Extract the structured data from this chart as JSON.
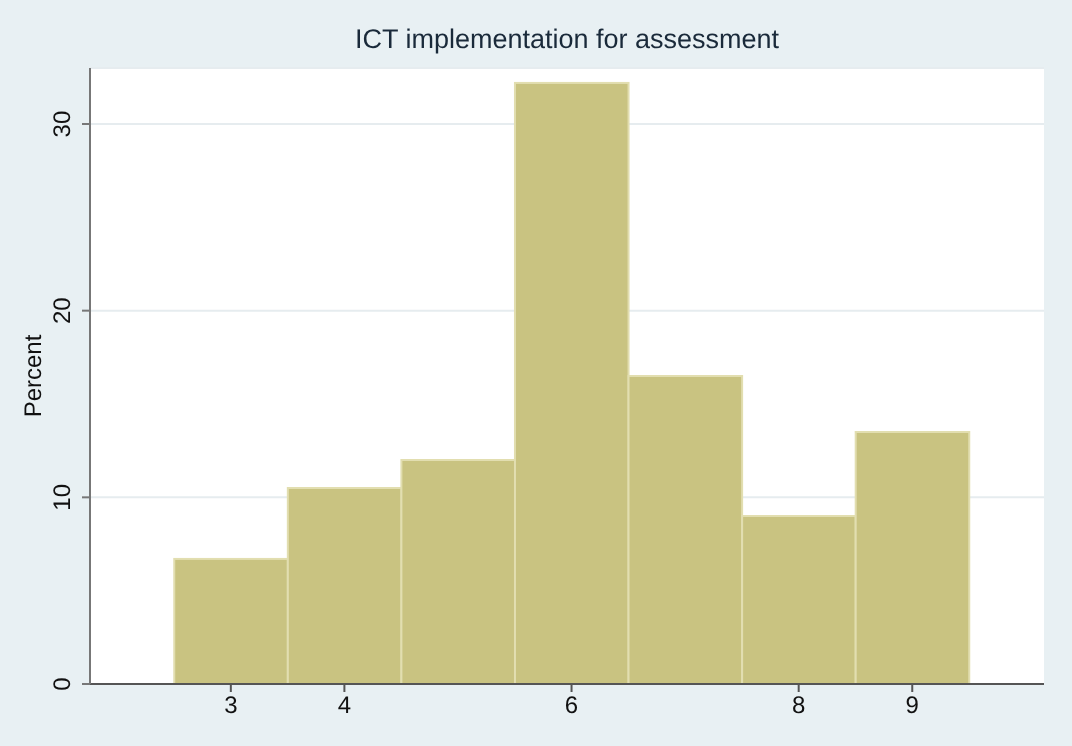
{
  "chart_data": {
    "type": "histogram",
    "title": "ICT implementation for assessment",
    "ylabel": "Percent",
    "bins": [
      2.5,
      3.5,
      4.5,
      5.5,
      6.5,
      7.5,
      8.5,
      9.5
    ],
    "values": [
      6.7,
      10.5,
      12,
      32.2,
      16.5,
      9,
      13.5
    ],
    "color": "#c9c381",
    "xlim": [
      1.76,
      10.16
    ],
    "xticks": [
      3,
      4,
      6,
      8,
      9
    ],
    "ylim": [
      0,
      33
    ],
    "yticks": [
      0,
      10,
      20,
      30
    ],
    "grid": "y",
    "legend": false
  }
}
